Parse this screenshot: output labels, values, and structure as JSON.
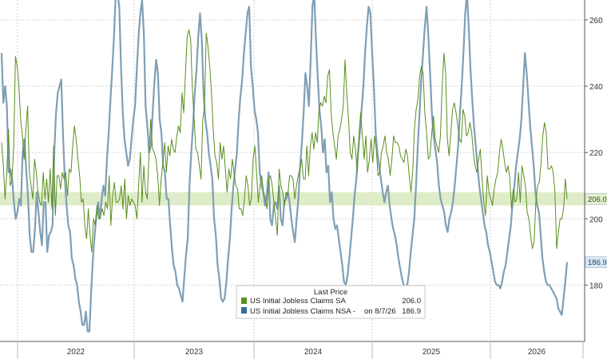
{
  "chart_data": {
    "type": "line",
    "title": "",
    "xlabel": "",
    "ylabel": "",
    "ylim": [
      163,
      266
    ],
    "yticks": [
      180,
      200,
      220,
      240,
      260
    ],
    "x_tick_labels": [
      "2022",
      "2023",
      "2024",
      "2025",
      "2026"
    ],
    "band": {
      "from": 204,
      "to": 208,
      "color": "#dfecc8"
    },
    "grid": "dashed-vertical-and-horizontal",
    "legend": {
      "title": "Last Price",
      "placement": "bottom-center",
      "entries": [
        {
          "label": "US Initial Jobless Claims SA",
          "value": "206.0",
          "color": "#5a8e1e"
        },
        {
          "label": "US Initial Jobless Claims NSA -",
          "note": "on 8/7/26",
          "value": "186.9",
          "color": "#2f6c9a"
        }
      ]
    },
    "last_value_tags": [
      {
        "value": 206.0,
        "label": "206.0",
        "color": "#e2efce",
        "text_color": "#2d4a10"
      },
      {
        "value": 186.9,
        "label": "186.9",
        "color": "#d9e7f3",
        "text_color": "#1f4a70"
      }
    ],
    "series": [
      {
        "name": "US Initial Jobless Claims SA",
        "color": "#5a8e1e",
        "values": [
          223,
          216,
          206,
          214,
          227,
          210,
          212,
          222,
          249,
          246,
          240,
          230,
          225,
          218,
          227,
          234,
          214,
          210,
          206,
          218,
          214,
          208,
          205,
          204,
          214,
          206,
          212,
          205,
          215,
          203,
          222,
          201,
          213,
          213,
          209,
          214,
          212,
          214,
          207,
          215,
          214,
          222,
          228,
          224,
          218,
          213,
          205,
          206,
          198,
          194,
          203,
          195,
          190,
          200,
          198,
          204,
          200,
          201,
          203,
          201,
          205,
          203,
          213,
          198,
          207,
          211,
          205,
          205,
          206,
          210,
          203,
          212,
          200,
          207,
          204,
          206,
          205,
          204,
          200,
          210,
          220,
          205,
          216,
          208,
          206,
          220,
          230,
          221,
          220,
          218,
          213,
          204,
          212,
          217,
          223,
          214,
          222,
          219,
          224,
          221,
          220,
          225,
          228,
          226,
          238,
          232,
          244,
          255,
          257,
          254,
          239,
          230,
          221,
          220,
          216,
          212,
          230,
          234,
          256,
          252,
          246,
          238,
          227,
          219,
          217,
          212,
          223,
          218,
          222,
          215,
          208,
          215,
          212,
          218,
          214,
          210,
          209,
          203,
          203,
          201,
          206,
          213,
          210,
          204,
          206,
          218,
          222,
          214,
          205,
          210,
          213,
          208,
          206,
          203,
          212,
          213,
          210,
          205,
          200,
          195,
          215,
          210,
          208,
          204,
          208,
          207,
          213,
          213,
          212,
          206,
          210,
          213,
          215,
          218,
          212,
          212,
          222,
          213,
          222,
          226,
          221,
          226,
          223,
          233,
          235,
          234,
          237,
          235,
          243,
          245,
          232,
          226,
          222,
          218,
          225,
          227,
          230,
          234,
          248,
          238,
          230,
          220,
          218,
          225,
          221,
          214,
          225,
          232,
          225,
          218,
          225,
          214,
          218,
          224,
          217,
          225,
          221,
          213,
          214,
          220,
          222,
          225,
          220,
          218,
          213,
          218,
          225,
          223,
          223,
          222,
          219,
          218,
          217,
          221,
          219,
          213,
          208,
          214,
          227,
          233,
          236,
          243,
          246,
          244,
          232,
          226,
          218,
          219,
          226,
          231,
          224,
          222,
          220,
          225,
          240,
          250,
          244,
          224,
          219,
          226,
          233,
          235,
          232,
          228,
          224,
          223,
          233,
          231,
          225,
          226,
          229,
          226,
          220,
          216,
          214,
          218,
          221,
          212,
          205,
          201,
          213,
          208,
          206,
          204,
          209,
          212,
          214,
          220,
          224,
          221,
          217,
          214,
          216,
          212,
          203,
          209,
          205,
          206,
          214,
          205,
          216,
          213,
          210,
          202,
          200,
          195,
          191,
          193,
          205,
          210,
          211,
          217,
          225,
          229,
          226,
          215,
          215,
          216,
          214,
          208,
          191,
          196,
          200,
          200,
          203,
          212,
          206
        ]
      },
      {
        "name": "US Initial Jobless Claims NSA -",
        "color": "#7f9fb5",
        "values": [
          250,
          235,
          240,
          234,
          214,
          215,
          212,
          205,
          200,
          202,
          206,
          204,
          220,
          224,
          215,
          207,
          195,
          190,
          190,
          197,
          208,
          202,
          196,
          192,
          205,
          205,
          190,
          195,
          196,
          198,
          220,
          232,
          238,
          240,
          242,
          225,
          212,
          204,
          198,
          196,
          188,
          186,
          182,
          180,
          175,
          172,
          168,
          168,
          172,
          166,
          166,
          178,
          188,
          195,
          201,
          205,
          200,
          206,
          210,
          207,
          218,
          226,
          236,
          245,
          255,
          268,
          268,
          264,
          246,
          232,
          224,
          220,
          216,
          218,
          224,
          230,
          234,
          245,
          255,
          262,
          266,
          256,
          234,
          228,
          220,
          222,
          232,
          241,
          248,
          244,
          230,
          226,
          216,
          214,
          206,
          206,
          198,
          191,
          186,
          184,
          180,
          179,
          177,
          175,
          182,
          189,
          194,
          210,
          220,
          228,
          238,
          245,
          255,
          262,
          254,
          238,
          230,
          226,
          220,
          216,
          212,
          200,
          195,
          186,
          182,
          176,
          175,
          176,
          181,
          188,
          194,
          203,
          210,
          215,
          220,
          230,
          237,
          242,
          250,
          256,
          262,
          264,
          246,
          240,
          233,
          230,
          226,
          214,
          210,
          208,
          204,
          207,
          214,
          200,
          198,
          204,
          205,
          203,
          210,
          200,
          198,
          205,
          206,
          208,
          205,
          200,
          196,
          193,
          200,
          206,
          216,
          223,
          232,
          244,
          240,
          234,
          248,
          264,
          268,
          254,
          243,
          233,
          228,
          220,
          224,
          214,
          216,
          205,
          208,
          200,
          197,
          198,
          194,
          190,
          186,
          181,
          180,
          183,
          188,
          194,
          200,
          207,
          212,
          220,
          226,
          233,
          240,
          250,
          258,
          264,
          262,
          250,
          240,
          226,
          220,
          216,
          212,
          208,
          205,
          208,
          210,
          204,
          200,
          197,
          195,
          192,
          188,
          185,
          182,
          180,
          179,
          180,
          184,
          190,
          195,
          200,
          210,
          222,
          232,
          242,
          250,
          258,
          264,
          255,
          244,
          232,
          225,
          221,
          217,
          210,
          206,
          204,
          202,
          198,
          196,
          200,
          202,
          205,
          210,
          216,
          222,
          232,
          240,
          250,
          262,
          268,
          258,
          245,
          236,
          228,
          222,
          216,
          210,
          206,
          202,
          198,
          196,
          192,
          190,
          187,
          184,
          181,
          180,
          180,
          179,
          181,
          184,
          186,
          190,
          194,
          198,
          205,
          210,
          216,
          220,
          224,
          230,
          240,
          250,
          244,
          236,
          228,
          222,
          216,
          208,
          204,
          202,
          195,
          188,
          184,
          181,
          180,
          180,
          179,
          178,
          177,
          176,
          173,
          172,
          171,
          176,
          181,
          186.9
        ]
      }
    ]
  }
}
